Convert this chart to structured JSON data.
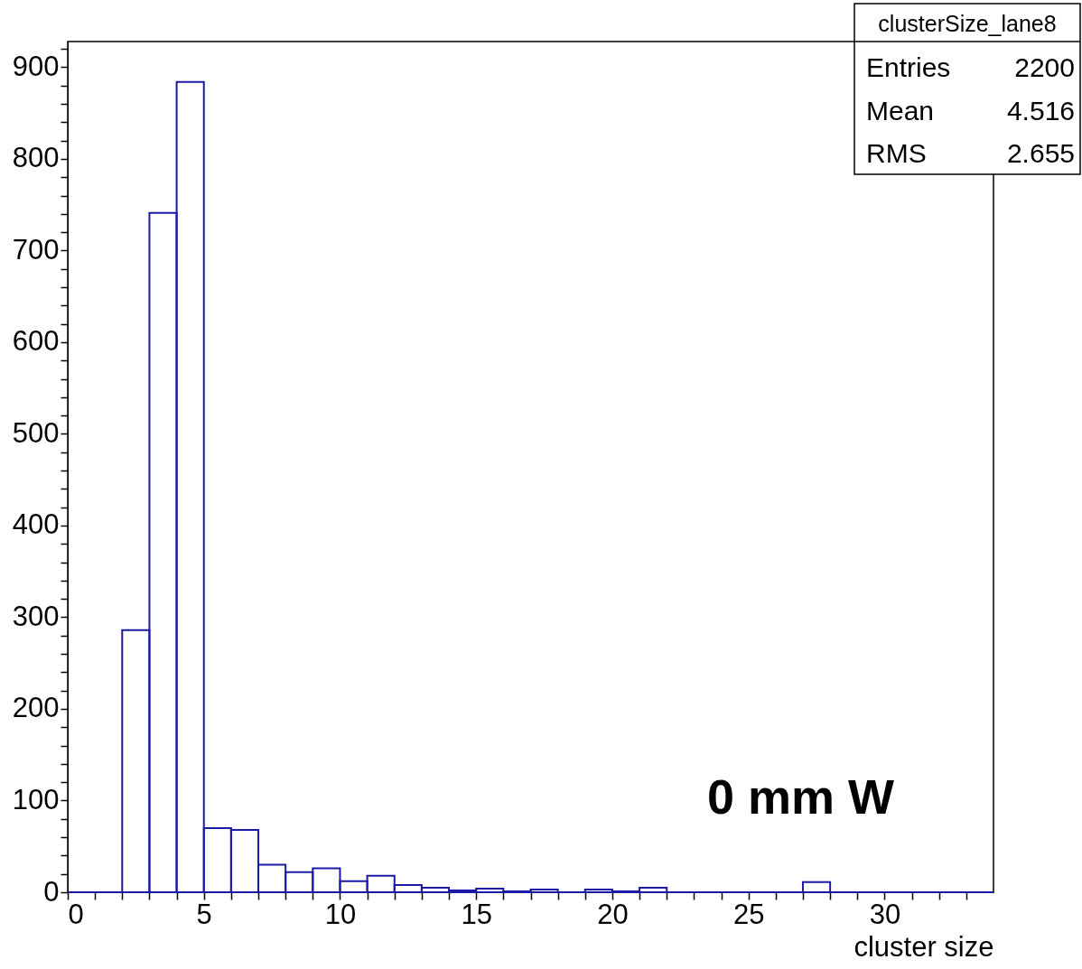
{
  "chart_data": {
    "type": "histogram",
    "title": "clusterSize_lane8",
    "xlabel": "cluster size",
    "bins": [
      0,
      1,
      2,
      3,
      4,
      5,
      6,
      7,
      8,
      9,
      10,
      11,
      12,
      13,
      14,
      15,
      16,
      17,
      18,
      19,
      20,
      21,
      22,
      23,
      24,
      25,
      26,
      27,
      28,
      29,
      30,
      31,
      32,
      33,
      34
    ],
    "values": [
      0,
      0,
      286,
      741,
      884,
      70,
      68,
      30,
      22,
      26,
      12,
      18,
      8,
      5,
      2,
      4,
      1,
      3,
      0,
      3,
      1,
      5,
      0,
      0,
      0,
      0,
      0,
      11,
      0,
      0,
      0,
      0,
      0,
      0
    ],
    "color": "#1a1aa6",
    "xlim": [
      0,
      34
    ],
    "xticks": [
      0,
      {
        "value": 1,
        "label": null
      },
      {
        "value": 2,
        "label": null
      },
      {
        "value": 3,
        "label": null
      },
      {
        "value": 4,
        "label": null
      },
      5,
      {
        "value": 6,
        "label": null
      },
      {
        "value": 7,
        "label": null
      },
      {
        "value": 8,
        "label": null
      },
      {
        "value": 9,
        "label": null
      },
      10,
      {
        "value": 11,
        "label": null
      },
      {
        "value": 12,
        "label": null
      },
      {
        "value": 13,
        "label": null
      },
      {
        "value": 14,
        "label": null
      },
      15,
      {
        "value": 16,
        "label": null
      },
      {
        "value": 17,
        "label": null
      },
      {
        "value": 18,
        "label": null
      },
      {
        "value": 19,
        "label": null
      },
      20,
      {
        "value": 21,
        "label": null
      },
      {
        "value": 22,
        "label": null
      },
      {
        "value": 23,
        "label": null
      },
      {
        "value": 24,
        "label": null
      },
      25,
      {
        "value": 26,
        "label": null
      },
      {
        "value": 27,
        "label": null
      },
      {
        "value": 28,
        "label": null
      },
      {
        "value": 29,
        "label": null
      },
      30,
      {
        "value": 31,
        "label": null
      },
      {
        "value": 32,
        "label": null
      },
      {
        "value": 33,
        "label": null
      }
    ],
    "ylim": [
      0,
      928
    ],
    "yticks": [
      0,
      {
        "value": 20,
        "label": null
      },
      {
        "value": 40,
        "label": null
      },
      {
        "value": 60,
        "label": null
      },
      {
        "value": 80,
        "label": null
      },
      100,
      {
        "value": 120,
        "label": null
      },
      {
        "value": 140,
        "label": null
      },
      {
        "value": 160,
        "label": null
      },
      {
        "value": 180,
        "label": null
      },
      200,
      {
        "value": 220,
        "label": null
      },
      {
        "value": 240,
        "label": null
      },
      {
        "value": 260,
        "label": null
      },
      {
        "value": 280,
        "label": null
      },
      300,
      {
        "value": 320,
        "label": null
      },
      {
        "value": 340,
        "label": null
      },
      {
        "value": 360,
        "label": null
      },
      {
        "value": 380,
        "label": null
      },
      400,
      {
        "value": 420,
        "label": null
      },
      {
        "value": 440,
        "label": null
      },
      {
        "value": 460,
        "label": null
      },
      {
        "value": 480,
        "label": null
      },
      500,
      {
        "value": 520,
        "label": null
      },
      {
        "value": 540,
        "label": null
      },
      {
        "value": 560,
        "label": null
      },
      {
        "value": 580,
        "label": null
      },
      600,
      {
        "value": 620,
        "label": null
      },
      {
        "value": 640,
        "label": null
      },
      {
        "value": 660,
        "label": null
      },
      {
        "value": 680,
        "label": null
      },
      700,
      {
        "value": 720,
        "label": null
      },
      {
        "value": 740,
        "label": null
      },
      {
        "value": 760,
        "label": null
      },
      {
        "value": 780,
        "label": null
      },
      800,
      {
        "value": 820,
        "label": null
      },
      {
        "value": 840,
        "label": null
      },
      {
        "value": 860,
        "label": null
      },
      {
        "value": 880,
        "label": null
      },
      900,
      {
        "value": 920,
        "label": null
      }
    ],
    "grid": false,
    "annotations": [
      "Entries",
      "2200",
      "Mean",
      "4.516",
      "RMS",
      "2.655",
      "0 mm W"
    ]
  }
}
